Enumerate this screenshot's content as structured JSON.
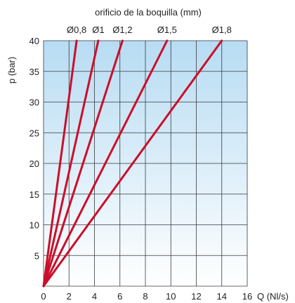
{
  "chart_data": {
    "type": "line",
    "title": "orificio de la boquilla (mm)",
    "xlabel": "Q (Nl/s)",
    "ylabel": "p (bar)",
    "xlim": [
      0,
      16
    ],
    "ylim": [
      0,
      40
    ],
    "x_ticks": [
      "0",
      "2",
      "4",
      "6",
      "8",
      "10",
      "12",
      "14",
      "16"
    ],
    "y_ticks": [
      "5",
      "10",
      "15",
      "20",
      "25",
      "30",
      "35",
      "40"
    ],
    "x_tick_values": [
      0,
      2,
      4,
      6,
      8,
      10,
      12,
      14,
      16
    ],
    "y_tick_values": [
      5,
      10,
      15,
      20,
      25,
      30,
      35,
      40
    ],
    "grid": true,
    "series_color": "#cc0e2a",
    "background_top_color": "#b7dcf3",
    "background_bottom_color": "#ffffff",
    "series": [
      {
        "name": "Ø0,8",
        "x": [
          0,
          2.6
        ],
        "y": [
          0,
          40
        ]
      },
      {
        "name": "Ø1",
        "x": [
          0,
          4.3
        ],
        "y": [
          0,
          40
        ]
      },
      {
        "name": "Ø1,2",
        "x": [
          0,
          6.2
        ],
        "y": [
          0,
          40
        ]
      },
      {
        "name": "Ø1,5",
        "x": [
          0,
          9.7
        ],
        "y": [
          0,
          40
        ]
      },
      {
        "name": "Ø1,8",
        "x": [
          0,
          14.0
        ],
        "y": [
          0,
          40
        ]
      }
    ]
  }
}
